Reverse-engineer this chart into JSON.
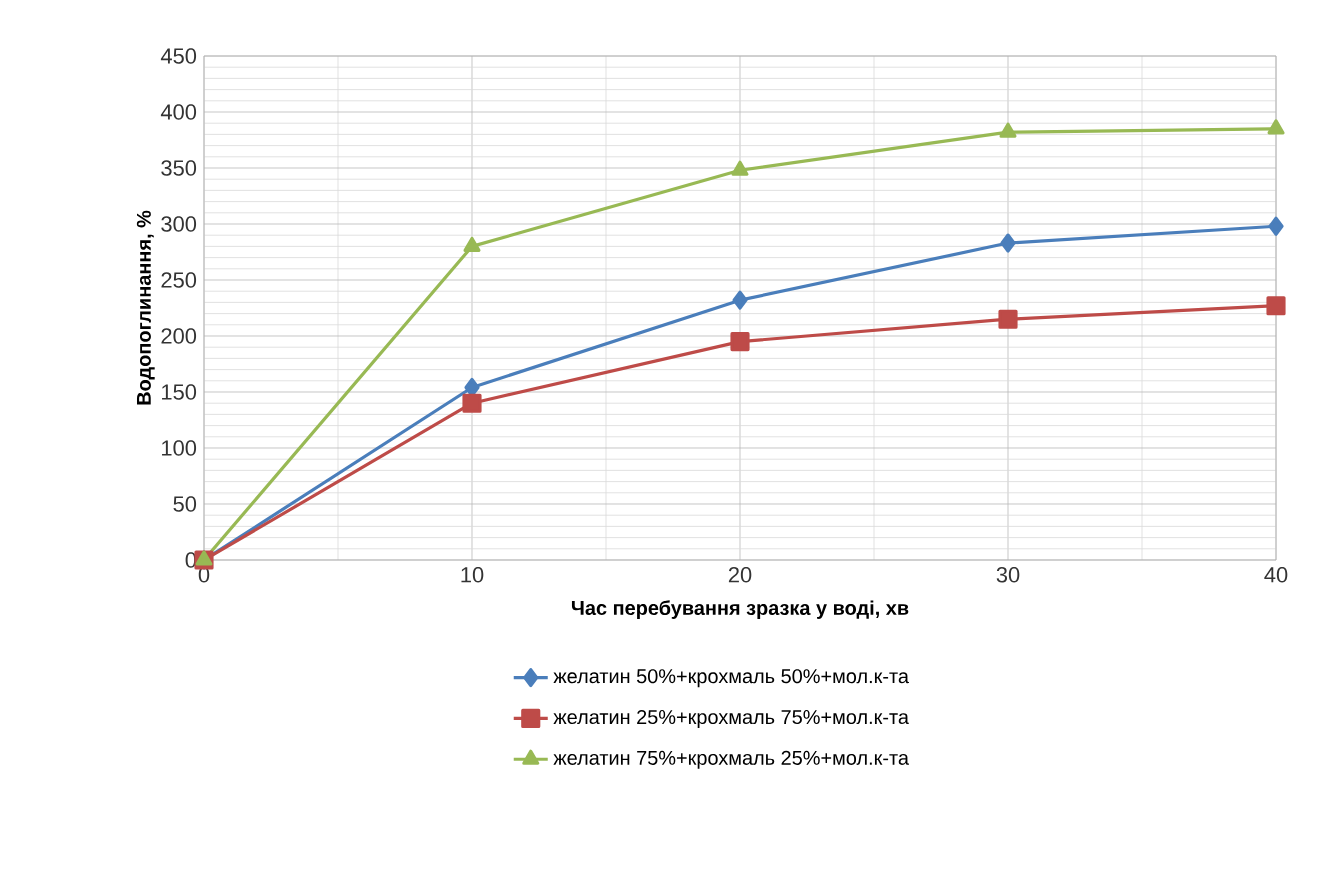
{
  "chart_data": {
    "type": "line",
    "xlabel": "Час перебування зразка у воді, хв",
    "ylabel": "Водопоглинання, %",
    "x": [
      0,
      10,
      20,
      30,
      40
    ],
    "series": [
      {
        "name": "желатин 50%+крохмаль 50%+мол.к-та",
        "color": "#4a7ebb",
        "marker": "diamond",
        "values": [
          0,
          154,
          232,
          283,
          298
        ]
      },
      {
        "name": "желатин 25%+крохмаль 75%+мол.к-та",
        "color": "#be4b48",
        "marker": "square",
        "values": [
          0,
          140,
          195,
          215,
          227
        ]
      },
      {
        "name": "желатин 75%+крохмаль 25%+мол.к-та",
        "color": "#98b954",
        "marker": "triangle",
        "values": [
          0,
          280,
          348,
          382,
          385
        ]
      }
    ],
    "xlim": [
      0,
      40
    ],
    "xticks": [
      0,
      10,
      20,
      30,
      40
    ],
    "ylim": [
      0,
      450
    ],
    "yticks": [
      0,
      50,
      100,
      150,
      200,
      250,
      300,
      350,
      400,
      450
    ],
    "grid": true,
    "legend": "bottom",
    "line_style": "solid"
  }
}
